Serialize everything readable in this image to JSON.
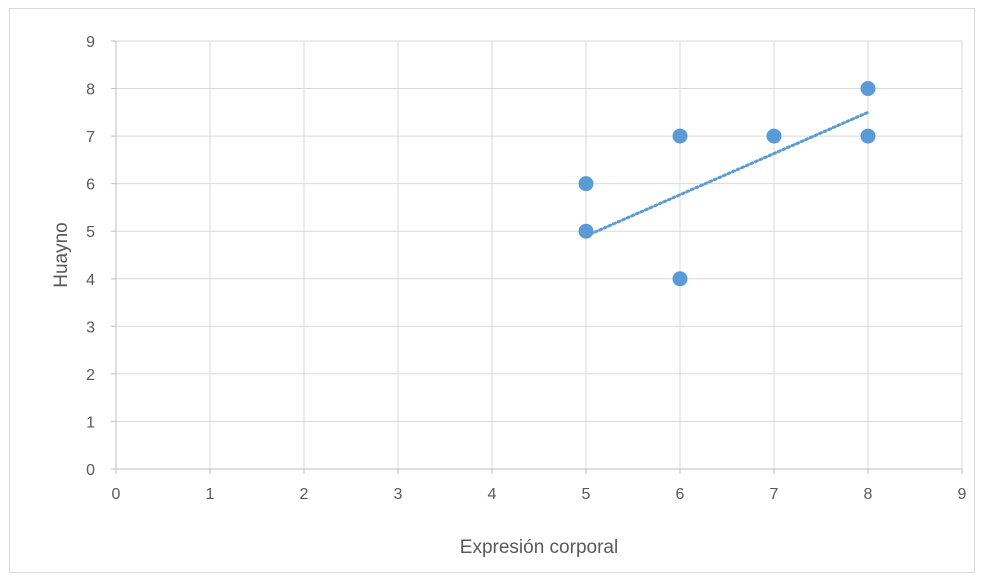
{
  "chart_data": {
    "type": "scatter",
    "title": "",
    "xlabel": "Expresión corporal",
    "ylabel": "Huayno",
    "xlim": [
      0,
      9
    ],
    "ylim": [
      0,
      9
    ],
    "xticks": [
      "0",
      "1",
      "2",
      "3",
      "4",
      "5",
      "6",
      "7",
      "8",
      "9"
    ],
    "yticks": [
      "0",
      "1",
      "2",
      "3",
      "4",
      "5",
      "6",
      "7",
      "8",
      "9"
    ],
    "grid": true,
    "legend": "none",
    "series": [
      {
        "points": [
          {
            "x": 5,
            "y": 6
          },
          {
            "x": 5,
            "y": 5
          },
          {
            "x": 6,
            "y": 7
          },
          {
            "x": 6,
            "y": 4
          },
          {
            "x": 7,
            "y": 7
          },
          {
            "x": 8,
            "y": 8
          },
          {
            "x": 8,
            "y": 7
          }
        ],
        "color": "#5b9bd5"
      }
    ],
    "trendline": {
      "type": "linear",
      "style": "dotted",
      "color": "#5b9bd5",
      "from": {
        "x": 5,
        "y": 4.9
      },
      "to": {
        "x": 8,
        "y": 7.5
      }
    },
    "colors": {
      "grid": "#d9d9d9",
      "axis": "#bfbfbf",
      "text": "#595959"
    }
  }
}
